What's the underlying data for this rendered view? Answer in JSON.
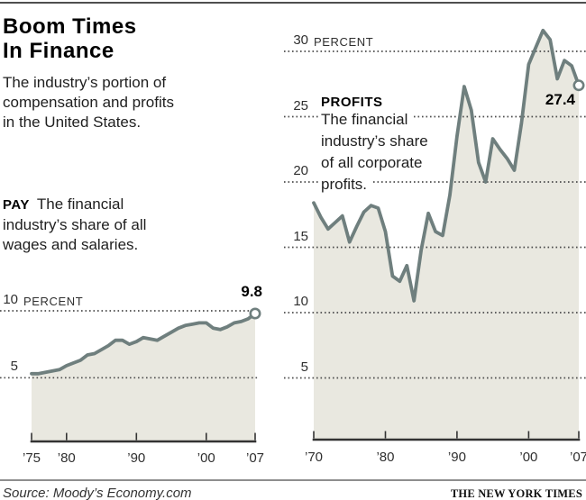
{
  "header": {
    "title_line1": "Boom Times",
    "title_line2": "In Finance",
    "subtitle_lines": [
      "The industry’s portion of",
      "compensation and profits",
      "in the United States."
    ]
  },
  "footer": {
    "source": "Source: Moody’s Economy.com",
    "credit": "THE NEW YORK TIMES"
  },
  "colors": {
    "line": "#6f7f7e",
    "fill": "#e9e8e0",
    "grid": "#4d4d4d",
    "axis": "#333333"
  },
  "chart_data": [
    {
      "type": "area",
      "title": "PAY",
      "description_lines": [
        "The financial",
        "industry’s share of all",
        "wages and salaries."
      ],
      "x_start": 1975,
      "x_end": 2007,
      "x_ticks": [
        {
          "year": 1975,
          "label": "’75"
        },
        {
          "year": 1980,
          "label": "’80"
        },
        {
          "year": 1990,
          "label": "’90"
        },
        {
          "year": 2000,
          "label": "’00"
        },
        {
          "year": 2007,
          "label": "’07"
        }
      ],
      "gridlines": [
        {
          "value": 10,
          "num": "10",
          "suffix": "PERCENT"
        },
        {
          "value": 5,
          "num": "5"
        }
      ],
      "values": [
        5.3,
        5.3,
        5.4,
        5.5,
        5.6,
        5.9,
        6.1,
        6.3,
        6.7,
        6.8,
        7.1,
        7.4,
        7.8,
        7.8,
        7.5,
        7.7,
        8.0,
        7.9,
        7.8,
        8.1,
        8.4,
        8.7,
        8.9,
        9.0,
        9.1,
        9.1,
        8.7,
        8.6,
        8.8,
        9.1,
        9.2,
        9.4,
        9.8
      ],
      "end_label": "9.8",
      "ylabel": "PERCENT",
      "ylim": [
        0,
        10.5
      ],
      "legend_position": "none"
    },
    {
      "type": "area",
      "title": "PROFITS",
      "description_lines": [
        "The financial",
        "industry’s share",
        "of all corporate",
        "profits."
      ],
      "x_start": 1970,
      "x_end": 2007,
      "x_ticks": [
        {
          "year": 1970,
          "label": "’70"
        },
        {
          "year": 1980,
          "label": "’80"
        },
        {
          "year": 1990,
          "label": "’90"
        },
        {
          "year": 2000,
          "label": "’00"
        },
        {
          "year": 2007,
          "label": "’07"
        }
      ],
      "gridlines": [
        {
          "value": 30,
          "num": "30",
          "suffix": "PERCENT"
        },
        {
          "value": 25,
          "num": "25"
        },
        {
          "value": 20,
          "num": "20"
        },
        {
          "value": 15,
          "num": "15"
        },
        {
          "value": 10,
          "num": "10"
        },
        {
          "value": 5,
          "num": "5"
        }
      ],
      "values": [
        18.4,
        17.3,
        16.4,
        16.9,
        17.4,
        15.4,
        16.6,
        17.7,
        18.2,
        18.0,
        16.2,
        12.8,
        12.4,
        13.6,
        10.9,
        14.8,
        17.6,
        16.2,
        15.9,
        19.0,
        23.5,
        27.3,
        25.5,
        21.5,
        20.0,
        23.3,
        22.5,
        21.8,
        20.9,
        24.5,
        29.0,
        30.3,
        31.6,
        30.9,
        27.9,
        29.3,
        28.9,
        27.4
      ],
      "end_label": "27.4",
      "ylabel": "PERCENT",
      "ylim": [
        0,
        34
      ],
      "legend_position": "none"
    }
  ]
}
